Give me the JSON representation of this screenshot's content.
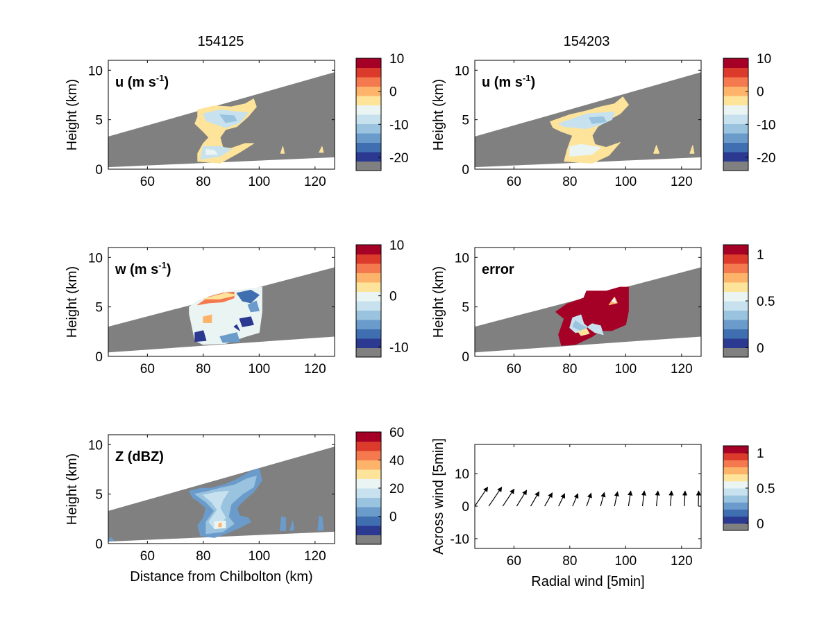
{
  "figure": {
    "column_titles": [
      "154125",
      "154203"
    ]
  },
  "palette": [
    "#808080",
    "#2b3990",
    "#3f6fb0",
    "#6a9bcb",
    "#99c3df",
    "#c7e2ee",
    "#eaf4f2",
    "#fde49a",
    "#fdb46a",
    "#f5794e",
    "#dc3b2c",
    "#a50026"
  ],
  "colors": {
    "gray": "#808080",
    "white": "#ffffff",
    "black": "#000000"
  },
  "chart_data": [
    {
      "id": "u1",
      "type": "heatmap",
      "column_title": "154125",
      "panel_label": "u (m s",
      "panel_label_sup": "-1",
      "panel_label_tail": ")",
      "xlabel": "",
      "ylabel": "Height (km)",
      "xlim": [
        46,
        127
      ],
      "ylim": [
        0,
        11
      ],
      "xticks": [
        "60",
        "80",
        "100",
        "120"
      ],
      "yticks": [
        "0",
        "5",
        "10"
      ],
      "scan_top": [
        [
          46,
          3.3
        ],
        [
          127,
          9.8
        ]
      ],
      "scan_bottom": [
        [
          46,
          0.2
        ],
        [
          127,
          1.2
        ]
      ],
      "colorbar": {
        "ticks": [
          10,
          0,
          -10,
          -20
        ],
        "range": [
          -24,
          10
        ]
      },
      "echo_extent_km": [
        76,
        100
      ],
      "echo_height_km": [
        0.5,
        7.2
      ]
    },
    {
      "id": "u2",
      "type": "heatmap",
      "column_title": "154203",
      "panel_label": "u (m s",
      "panel_label_sup": "-1",
      "panel_label_tail": ")",
      "xlabel": "",
      "ylabel": "Height (km)",
      "xlim": [
        46,
        127
      ],
      "ylim": [
        0,
        11
      ],
      "xticks": [
        "60",
        "80",
        "100",
        "120"
      ],
      "yticks": [
        "0",
        "5",
        "10"
      ],
      "scan_top": [
        [
          46,
          3.3
        ],
        [
          127,
          9.8
        ]
      ],
      "scan_bottom": [
        [
          46,
          0.2
        ],
        [
          127,
          1.2
        ]
      ],
      "colorbar": {
        "ticks": [
          10,
          0,
          -10,
          -20
        ],
        "range": [
          -24,
          10
        ]
      },
      "echo_extent_km": [
        73,
        100
      ],
      "echo_height_km": [
        0.5,
        7.2
      ]
    },
    {
      "id": "w",
      "type": "heatmap",
      "panel_label": "w (m s",
      "panel_label_sup": "-1",
      "panel_label_tail": ")",
      "xlabel": "",
      "ylabel": "Height (km)",
      "xlim": [
        46,
        127
      ],
      "ylim": [
        0,
        11
      ],
      "xticks": [
        "60",
        "80",
        "100",
        "120"
      ],
      "yticks": [
        "0",
        "5",
        "10"
      ],
      "scan_top": [
        [
          46,
          3.0
        ],
        [
          127,
          9.0
        ]
      ],
      "scan_bottom": [
        [
          46,
          0.4
        ],
        [
          127,
          2.0
        ]
      ],
      "colorbar": {
        "ticks": [
          10,
          0,
          -10
        ],
        "range": [
          -12,
          10
        ]
      },
      "echo_extent_km": [
        75,
        101
      ],
      "echo_height_km": [
        1.2,
        7.0
      ]
    },
    {
      "id": "err",
      "type": "heatmap",
      "panel_label": "error",
      "panel_label_sup": "",
      "panel_label_tail": "",
      "xlabel": "",
      "ylabel": "Height (km)",
      "xlim": [
        46,
        127
      ],
      "ylim": [
        0,
        11
      ],
      "xticks": [
        "60",
        "80",
        "100",
        "120"
      ],
      "yticks": [
        "0",
        "5",
        "10"
      ],
      "scan_top": [
        [
          46,
          3.0
        ],
        [
          127,
          9.0
        ]
      ],
      "scan_bottom": [
        [
          46,
          0.4
        ],
        [
          127,
          2.0
        ]
      ],
      "colorbar": {
        "ticks": [
          1,
          0.5,
          0
        ],
        "range": [
          -0.1,
          1.1
        ]
      },
      "echo_extent_km": [
        75,
        101
      ],
      "echo_height_km": [
        1.2,
        7.0
      ]
    },
    {
      "id": "z",
      "type": "heatmap",
      "panel_label": "Z (dBZ)",
      "panel_label_sup": "",
      "panel_label_tail": "",
      "xlabel": "Distance from Chilbolton (km)",
      "ylabel": "Height (km)",
      "xlim": [
        46,
        127
      ],
      "ylim": [
        0,
        11
      ],
      "xticks": [
        "60",
        "80",
        "100",
        "120"
      ],
      "yticks": [
        "0",
        "5",
        "10"
      ],
      "scan_top": [
        [
          46,
          3.3
        ],
        [
          127,
          9.8
        ]
      ],
      "scan_bottom": [
        [
          46,
          0.2
        ],
        [
          127,
          1.2
        ]
      ],
      "colorbar": {
        "ticks": [
          60,
          40,
          20,
          0
        ],
        "range": [
          -20,
          60
        ]
      },
      "echo_extent_km": [
        76,
        100
      ],
      "echo_height_km": [
        0.5,
        7.6
      ]
    },
    {
      "id": "quiver",
      "type": "scatter",
      "xlabel": "Radial wind [5min]",
      "ylabel": "Across wind [5min]",
      "xlim": [
        46,
        127
      ],
      "ylim": [
        -13,
        19
      ],
      "xticks": [
        "60",
        "80",
        "100",
        "120"
      ],
      "yticks": [
        "-10",
        "0",
        "10"
      ],
      "colorbar": {
        "ticks": [
          1,
          0.5,
          0
        ],
        "range": [
          -0.1,
          1.1
        ]
      },
      "arrows": [
        {
          "x": 46,
          "y": 0,
          "u": 3.4,
          "v": 5
        },
        {
          "x": 51,
          "y": 0,
          "u": 3.4,
          "v": 5
        },
        {
          "x": 56,
          "y": 0,
          "u": 3.0,
          "v": 4.5
        },
        {
          "x": 61,
          "y": 0,
          "u": 2.6,
          "v": 4.2
        },
        {
          "x": 66,
          "y": 0,
          "u": 2.2,
          "v": 3.8
        },
        {
          "x": 71,
          "y": 0,
          "u": 2.0,
          "v": 3.5
        },
        {
          "x": 76,
          "y": 0,
          "u": 1.6,
          "v": 3.3
        },
        {
          "x": 81,
          "y": 0,
          "u": 1.4,
          "v": 3.3
        },
        {
          "x": 86,
          "y": 0,
          "u": 1.2,
          "v": 3.4
        },
        {
          "x": 91,
          "y": 0,
          "u": 1.0,
          "v": 3.6
        },
        {
          "x": 96,
          "y": 0,
          "u": 0.8,
          "v": 3.8
        },
        {
          "x": 101,
          "y": 0,
          "u": 0.6,
          "v": 4.0
        },
        {
          "x": 106,
          "y": 0,
          "u": 0.5,
          "v": 4.0
        },
        {
          "x": 111,
          "y": 0,
          "u": 0.4,
          "v": 4.0
        },
        {
          "x": 116,
          "y": 0,
          "u": 0.3,
          "v": 4.0
        },
        {
          "x": 121,
          "y": 0,
          "u": 0.2,
          "v": 4.0
        },
        {
          "x": 126,
          "y": 0,
          "u": 0.1,
          "v": 4.0
        }
      ]
    }
  ]
}
